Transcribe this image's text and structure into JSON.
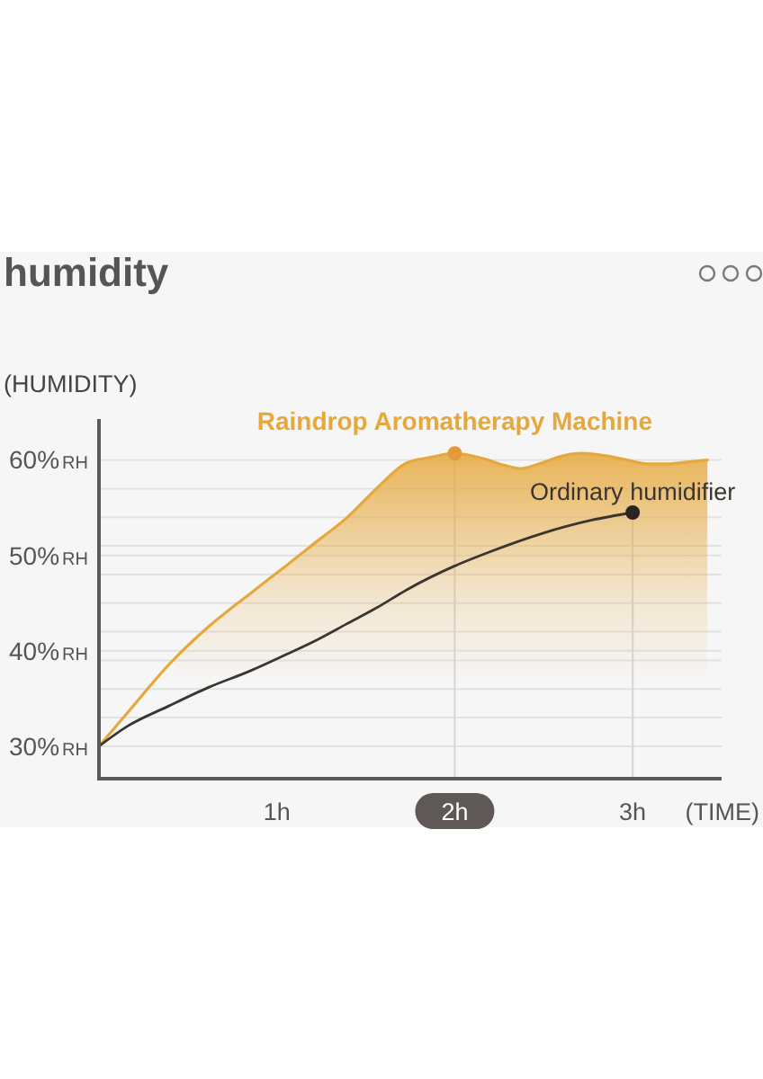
{
  "chart_data": {
    "type": "line",
    "title": "humidity",
    "ylabel": "(HUMIDITY)",
    "xlabel": "(TIME)",
    "xlim": [
      0,
      3.5
    ],
    "xticks": [
      {
        "value": 1,
        "label": "1h"
      },
      {
        "value": 2,
        "label": "2h"
      },
      {
        "value": 3,
        "label": "3h"
      }
    ],
    "ylim": [
      26.6,
      64.3
    ],
    "yticks": [
      {
        "value": 30,
        "label": "30%RH"
      },
      {
        "value": 33,
        "label": null
      },
      {
        "value": 36,
        "label": null
      },
      {
        "value": 39,
        "label": null
      },
      {
        "value": 40,
        "label": "40%RH"
      },
      {
        "value": 42,
        "label": null
      },
      {
        "value": 45,
        "label": null
      },
      {
        "value": 48,
        "label": null
      },
      {
        "value": 50,
        "label": "50%RH"
      },
      {
        "value": 51,
        "label": null
      },
      {
        "value": 54,
        "label": null
      },
      {
        "value": 57,
        "label": null
      },
      {
        "value": 60,
        "label": "60%RH"
      }
    ],
    "grid": "y",
    "series": [
      {
        "name": "Raindrop Aromatherapy Machine",
        "type": "area",
        "color": "#e6a83c",
        "x": [
          0,
          0.16,
          0.39,
          0.62,
          0.85,
          1.05,
          1.22,
          1.39,
          1.56,
          1.73,
          1.87,
          2,
          2.15,
          2.29,
          2.37,
          2.49,
          2.6,
          2.71,
          2.83,
          2.97,
          3.08,
          3.19,
          3.31,
          3.42
        ],
        "values": [
          30,
          33.5,
          38.5,
          42.6,
          46,
          48.9,
          51.4,
          53.9,
          57,
          59.7,
          60.3,
          60.7,
          60.2,
          59.4,
          59.1,
          59.7,
          60.4,
          60.7,
          60.5,
          60,
          59.6,
          59.6,
          59.8,
          60
        ]
      },
      {
        "name": "Ordinary humidifier",
        "type": "line",
        "color": "#3b3530",
        "x": [
          0,
          0.16,
          0.39,
          0.62,
          0.85,
          1.05,
          1.22,
          1.39,
          1.56,
          1.73,
          2,
          2.2,
          2.49,
          2.77,
          3
        ],
        "values": [
          30,
          32.1,
          34.2,
          36.2,
          37.9,
          39.6,
          41.1,
          42.8,
          44.5,
          46.4,
          48.9,
          50.4,
          52.3,
          53.7,
          54.5
        ]
      },
      {
        "type": "scatter",
        "color": "#e39a3a",
        "marker": "circle",
        "x": [
          2
        ],
        "values": [
          60.7
        ]
      },
      {
        "type": "scatter",
        "color": "#2a2522",
        "marker": "circle",
        "x": [
          3
        ],
        "values": [
          54.5
        ]
      }
    ],
    "ref_lines": [
      {
        "axis": "x",
        "value": 2,
        "color": "#d6d6d6"
      },
      {
        "axis": "x",
        "value": 3,
        "color": "#d6d6d6"
      }
    ]
  }
}
